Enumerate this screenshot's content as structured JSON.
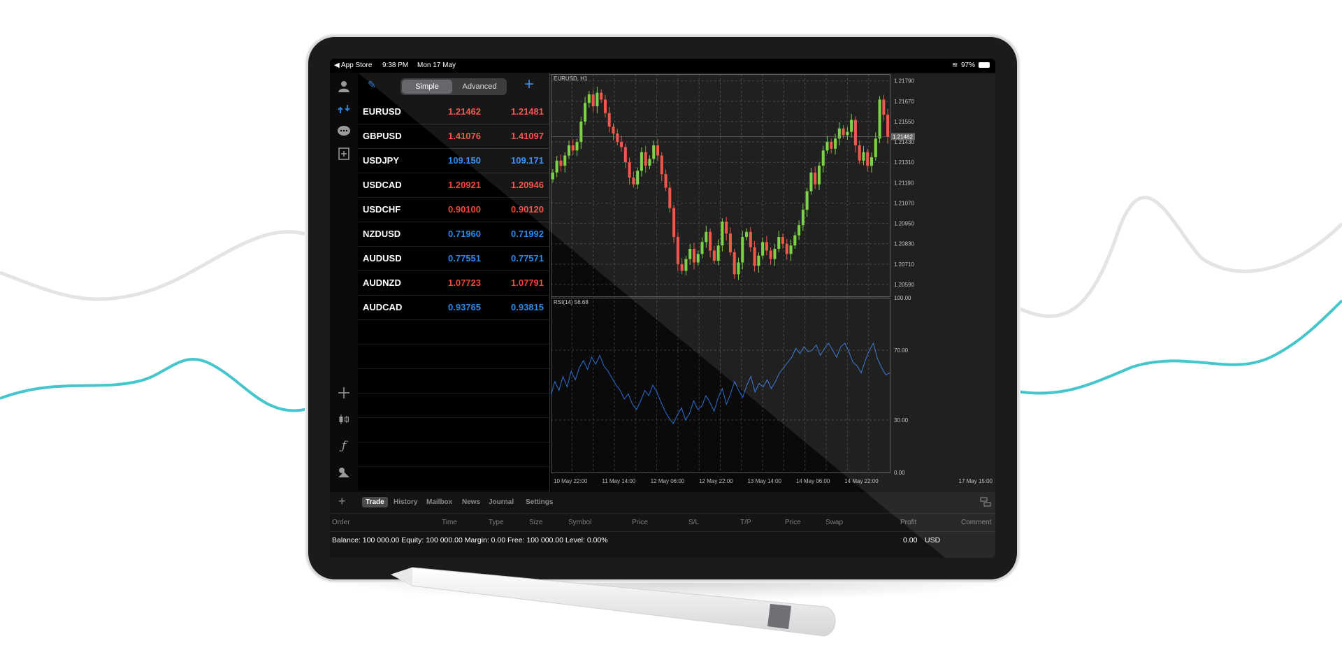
{
  "statusbar": {
    "back_label": "◀ App Store",
    "time": "9:38 PM",
    "date": "Mon 17 May",
    "battery": "97%"
  },
  "sidebar": {
    "icons": [
      "account-icon",
      "trade-icon",
      "chat-icon",
      "new-order-icon"
    ],
    "tools": [
      "crosshair-icon",
      "chart-type-icon",
      "indicator-icon",
      "objects-icon"
    ],
    "timeframe": "H1"
  },
  "watchlist": {
    "mode_simple": "Simple",
    "mode_advanced": "Advanced",
    "rows": [
      {
        "symbol": "EURUSD",
        "bid": "1.21462",
        "ask": "1.21481",
        "color": "#f0483b"
      },
      {
        "symbol": "GBPUSD",
        "bid": "1.41076",
        "ask": "1.41097",
        "color": "#f0483b"
      },
      {
        "symbol": "USDJPY",
        "bid": "109.150",
        "ask": "109.171",
        "color": "#2d89e8"
      },
      {
        "symbol": "USDCAD",
        "bid": "1.20921",
        "ask": "1.20946",
        "color": "#f0483b"
      },
      {
        "symbol": "USDCHF",
        "bid": "0.90100",
        "ask": "0.90120",
        "color": "#f0483b"
      },
      {
        "symbol": "NZDUSD",
        "bid": "0.71960",
        "ask": "0.71992",
        "color": "#2d89e8"
      },
      {
        "symbol": "AUDUSD",
        "bid": "0.77551",
        "ask": "0.77571",
        "color": "#2d89e8"
      },
      {
        "symbol": "AUDNZD",
        "bid": "1.07723",
        "ask": "1.07791",
        "color": "#f0483b"
      },
      {
        "symbol": "AUDCAD",
        "bid": "0.93765",
        "ask": "0.93815",
        "color": "#2d89e8"
      }
    ]
  },
  "chart_data": {
    "type": "candlestick",
    "title": "EURUSD, H1",
    "price_ticks": [
      "1.21790",
      "1.21670",
      "1.21550",
      "1.21430",
      "1.21310",
      "1.21190",
      "1.21070",
      "1.20950",
      "1.20830",
      "1.20710",
      "1.20590"
    ],
    "price_range": [
      1.2052,
      1.2183
    ],
    "current_price": "1.21462",
    "time_labels": [
      "10 May 22:00",
      "11 May 14:00",
      "12 May 06:00",
      "12 May 22:00",
      "13 May 14:00",
      "14 May 06:00",
      "14 May 22:00",
      "17 May 15:00"
    ],
    "closes": [
      1.2125,
      1.2132,
      1.2129,
      1.2135,
      1.2141,
      1.2138,
      1.2143,
      1.2155,
      1.2166,
      1.2171,
      1.2164,
      1.2172,
      1.2168,
      1.216,
      1.2152,
      1.2148,
      1.2143,
      1.214,
      1.2131,
      1.2122,
      1.2118,
      1.2126,
      1.2137,
      1.2129,
      1.2133,
      1.2141,
      1.2135,
      1.2124,
      1.2116,
      1.2104,
      1.2087,
      1.2071,
      1.2067,
      1.2074,
      1.208,
      1.2072,
      1.2077,
      1.2084,
      1.209,
      1.2079,
      1.2073,
      1.2082,
      1.2096,
      1.2089,
      1.2078,
      1.2065,
      1.2072,
      1.2087,
      1.209,
      1.2081,
      1.207,
      1.2076,
      1.2084,
      1.2079,
      1.2074,
      1.208,
      1.2087,
      1.2083,
      1.2077,
      1.2082,
      1.2088,
      1.2094,
      1.2103,
      1.2114,
      1.2125,
      1.2118,
      1.2129,
      1.2138,
      1.2143,
      1.2139,
      1.2145,
      1.2151,
      1.2147,
      1.2149,
      1.2156,
      1.2141,
      1.2132,
      1.2137,
      1.2129,
      1.2134,
      1.2145,
      1.2168,
      1.2159,
      1.2146
    ],
    "rsi_label": "RSI(14) 56.68",
    "rsi_ticks": [
      "100.00",
      "70.00",
      "30.00",
      "0.00"
    ],
    "rsi_range": [
      0,
      100
    ],
    "rsi_values": [
      44,
      52,
      47,
      55,
      49,
      58,
      53,
      60,
      64,
      59,
      66,
      62,
      67,
      61,
      58,
      54,
      50,
      47,
      42,
      45,
      39,
      36,
      41,
      47,
      44,
      50,
      46,
      40,
      35,
      31,
      28,
      33,
      37,
      30,
      34,
      41,
      36,
      38,
      44,
      40,
      35,
      43,
      48,
      39,
      45,
      52,
      47,
      43,
      50,
      55,
      46,
      51,
      49,
      53,
      48,
      52,
      57,
      60,
      63,
      66,
      71,
      68,
      72,
      69,
      70,
      73,
      67,
      71,
      74,
      70,
      66,
      72,
      74,
      69,
      63,
      61,
      57,
      64,
      70,
      74,
      65,
      60,
      56,
      57
    ]
  },
  "bottom": {
    "tabs": [
      "Trade",
      "History",
      "Mailbox",
      "News",
      "Journal",
      "Settings"
    ],
    "columns": [
      "Order",
      "Time",
      "Type",
      "Size",
      "Symbol",
      "Price",
      "S/L",
      "T/P",
      "Price",
      "Swap",
      "Profit",
      "Comment"
    ],
    "balance_line": "Balance: 100 000.00 Equity: 100 000.00 Margin: 0.00 Free: 100 000.00 Level: 0.00%",
    "profit": "0.00",
    "currency": "USD"
  }
}
